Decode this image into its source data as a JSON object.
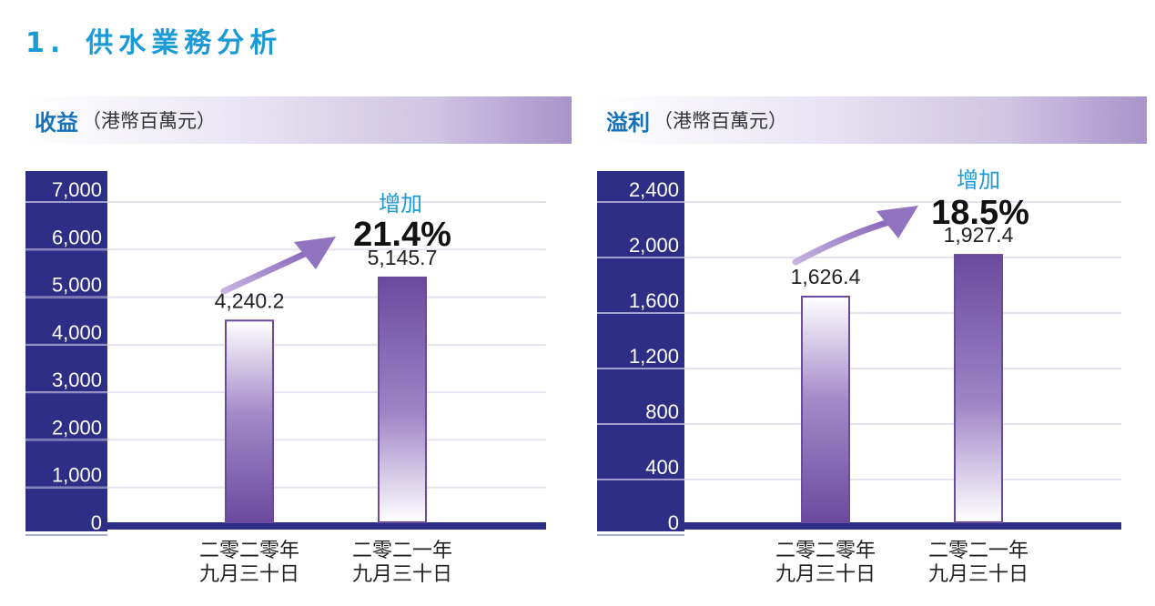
{
  "section": {
    "number": "1.",
    "title": "供水業務分析"
  },
  "colors": {
    "axis": "#2d2f86",
    "bar_dark": "#6b4a9e",
    "bar_light": "#ffffff",
    "arrow": "#9b7fc4",
    "title": "#1b9ad6"
  },
  "chart_data": [
    {
      "type": "bar",
      "title": "收益",
      "unit": "（港幣百萬元）",
      "categories": [
        [
          "二零二零年",
          "九月三十日"
        ],
        [
          "二零二一年",
          "九月三十日"
        ]
      ],
      "values": [
        4240.2,
        5145.7
      ],
      "value_labels": [
        "4,240.2",
        "5,145.7"
      ],
      "ylim": [
        0,
        7000
      ],
      "yticks": [
        0,
        1000,
        2000,
        3000,
        4000,
        5000,
        6000,
        7000
      ],
      "ytick_labels": [
        "0",
        "1,000",
        "2,000",
        "3,000",
        "4,000",
        "5,000",
        "6,000",
        "7,000"
      ],
      "increase_label": "增加",
      "increase_pct": "21.4%",
      "grid": true
    },
    {
      "type": "bar",
      "title": "溢利",
      "unit": "（港幣百萬元）",
      "categories": [
        [
          "二零二零年",
          "九月三十日"
        ],
        [
          "二零二一年",
          "九月三十日"
        ]
      ],
      "values": [
        1626.4,
        1927.4
      ],
      "value_labels": [
        "1,626.4",
        "1,927.4"
      ],
      "ylim": [
        0,
        2400
      ],
      "yticks": [
        0,
        400,
        800,
        1200,
        1600,
        2000,
        2400
      ],
      "ytick_labels": [
        "0",
        "400",
        "800",
        "1,200",
        "1,600",
        "2,000",
        "2,400"
      ],
      "increase_label": "增加",
      "increase_pct": "18.5%",
      "grid": true
    }
  ]
}
